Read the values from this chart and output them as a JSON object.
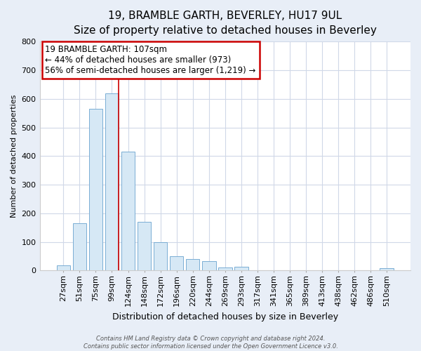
{
  "title": "19, BRAMBLE GARTH, BEVERLEY, HU17 9UL",
  "subtitle": "Size of property relative to detached houses in Beverley",
  "xlabel": "Distribution of detached houses by size in Beverley",
  "ylabel": "Number of detached properties",
  "bar_labels": [
    "27sqm",
    "51sqm",
    "75sqm",
    "99sqm",
    "124sqm",
    "148sqm",
    "172sqm",
    "196sqm",
    "220sqm",
    "244sqm",
    "269sqm",
    "293sqm",
    "317sqm",
    "341sqm",
    "365sqm",
    "389sqm",
    "413sqm",
    "438sqm",
    "462sqm",
    "486sqm",
    "510sqm"
  ],
  "bar_heights": [
    18,
    165,
    565,
    620,
    415,
    170,
    100,
    50,
    40,
    33,
    10,
    13,
    0,
    0,
    0,
    0,
    0,
    0,
    0,
    0,
    8
  ],
  "bar_color": "#d6e8f5",
  "bar_edge_color": "#7aadd4",
  "highlight_bar_index": 3,
  "highlight_line_color": "#cc0000",
  "ylim": [
    0,
    800
  ],
  "yticks": [
    0,
    100,
    200,
    300,
    400,
    500,
    600,
    700,
    800
  ],
  "annotation_line1": "19 BRAMBLE GARTH: 107sqm",
  "annotation_line2": "← 44% of detached houses are smaller (973)",
  "annotation_line3": "56% of semi-detached houses are larger (1,219) →",
  "annotation_box_facecolor": "#ffffff",
  "annotation_box_edgecolor": "#cc0000",
  "footer_line1": "Contains HM Land Registry data © Crown copyright and database right 2024.",
  "footer_line2": "Contains public sector information licensed under the Open Government Licence v3.0.",
  "fig_facecolor": "#e8eef7",
  "plot_facecolor": "#ffffff",
  "grid_color": "#d0d8e8",
  "title_fontsize": 11,
  "subtitle_fontsize": 9,
  "ylabel_fontsize": 8,
  "xlabel_fontsize": 9,
  "tick_fontsize": 8,
  "annotation_fontsize": 8.5,
  "footer_fontsize": 6
}
